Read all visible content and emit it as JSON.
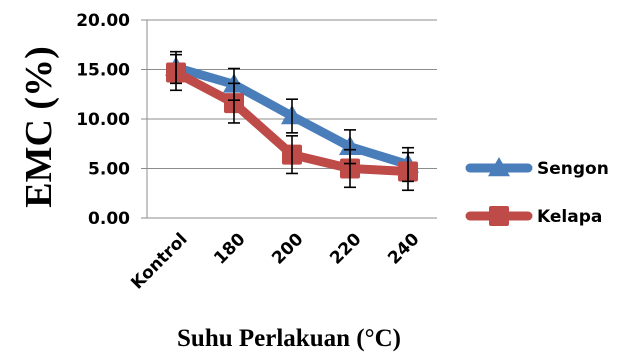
{
  "chart_data": {
    "type": "line",
    "xlabel": "Suhu Perlakuan (°C)",
    "ylabel": "EMC (%)",
    "categories": [
      "Kontrol",
      "180",
      "200",
      "220",
      "240"
    ],
    "ylim": [
      0,
      20
    ],
    "yticks": [
      "0.00",
      "5.00",
      "10.00",
      "15.00",
      "20.00"
    ],
    "grid": "horizontal",
    "legend_position": "right",
    "series": [
      {
        "name": "Sengon",
        "color": "#4a7ebb",
        "marker": "triangle",
        "values": [
          15.2,
          13.5,
          10.3,
          7.2,
          5.4
        ],
        "error": [
          1.6,
          1.6,
          1.7,
          1.7,
          1.7
        ]
      },
      {
        "name": "Kelapa",
        "color": "#be4b48",
        "marker": "square",
        "values": [
          14.7,
          11.6,
          6.4,
          5.0,
          4.7
        ],
        "error": [
          1.8,
          2.0,
          1.9,
          1.9,
          1.9
        ]
      }
    ]
  }
}
